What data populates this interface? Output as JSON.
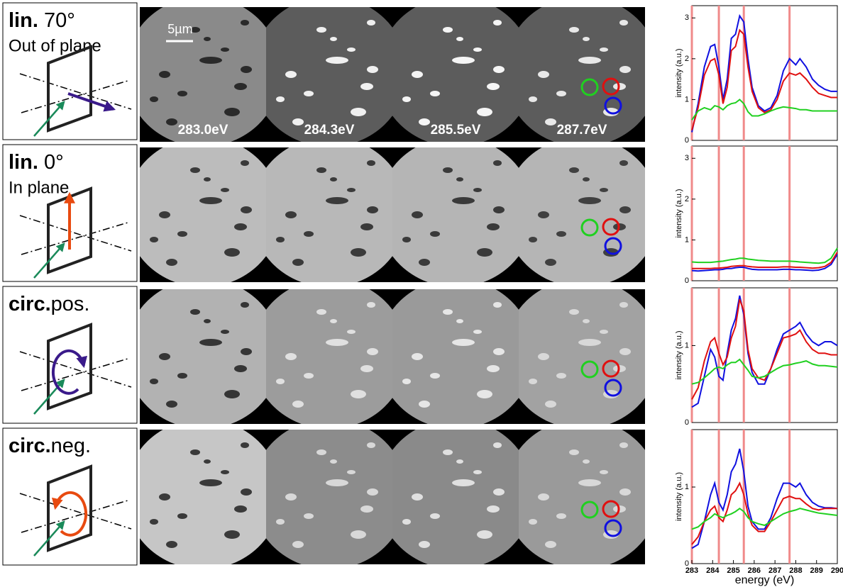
{
  "rows": [
    {
      "label_bold": "lin.",
      "label_rest": " 70°",
      "subtitle": "Out of plane"
    },
    {
      "label_bold": "lin.",
      "label_rest": " 0°",
      "subtitle": "In plane"
    },
    {
      "label_bold": "circ.",
      "label_rest": "pos."
    },
    {
      "label_bold": "circ.",
      "label_rest": "neg."
    }
  ],
  "energy_labels": [
    "283.0eV",
    "284.3eV",
    "285.5eV",
    "287.7eV"
  ],
  "scale_bar": "5µm",
  "chart_data": [
    {
      "type": "line",
      "ylabel": "intensity (a.u.)",
      "xlim": [
        283,
        290
      ],
      "ylim": [
        0,
        3.3
      ],
      "yticks": [
        0,
        1,
        2,
        3
      ],
      "vlines": [
        283.0,
        284.3,
        285.5,
        287.7
      ],
      "vline_color": "#f08a8a",
      "x": [
        283,
        283.3,
        283.6,
        283.9,
        284.1,
        284.3,
        284.5,
        284.7,
        284.9,
        285.1,
        285.3,
        285.5,
        285.7,
        285.9,
        286.2,
        286.5,
        286.8,
        287.1,
        287.4,
        287.7,
        288.0,
        288.2,
        288.5,
        288.8,
        289.1,
        289.4,
        289.7,
        290
      ],
      "series": [
        {
          "color": "#1010e0",
          "values": [
            0.2,
            0.9,
            1.8,
            2.3,
            2.35,
            1.8,
            1.0,
            1.5,
            2.5,
            2.6,
            3.05,
            2.9,
            2.0,
            1.3,
            0.85,
            0.72,
            0.8,
            1.1,
            1.7,
            2.0,
            1.85,
            2.0,
            1.8,
            1.5,
            1.35,
            1.25,
            1.2,
            1.2
          ]
        },
        {
          "color": "#e01010",
          "values": [
            0.25,
            0.8,
            1.6,
            1.95,
            2.0,
            1.6,
            0.9,
            1.3,
            2.2,
            2.3,
            2.7,
            2.6,
            1.8,
            1.2,
            0.8,
            0.68,
            0.75,
            1.0,
            1.45,
            1.65,
            1.6,
            1.65,
            1.5,
            1.3,
            1.15,
            1.1,
            1.05,
            1.05
          ]
        },
        {
          "color": "#20d020",
          "values": [
            0.5,
            0.72,
            0.8,
            0.75,
            0.85,
            0.82,
            0.75,
            0.85,
            0.9,
            0.92,
            1.0,
            0.9,
            0.7,
            0.6,
            0.6,
            0.65,
            0.72,
            0.78,
            0.82,
            0.8,
            0.78,
            0.75,
            0.75,
            0.72,
            0.72,
            0.72,
            0.72,
            0.72
          ]
        }
      ]
    },
    {
      "type": "line",
      "ylabel": "intensity (a.u.)",
      "xlim": [
        283,
        290
      ],
      "ylim": [
        0,
        3.3
      ],
      "yticks": [
        0,
        1,
        2,
        3
      ],
      "vlines": [
        283.0,
        284.3,
        285.5,
        287.7
      ],
      "vline_color": "#f08a8a",
      "x": [
        283,
        283.3,
        283.6,
        283.9,
        284.1,
        284.3,
        284.5,
        284.7,
        284.9,
        285.1,
        285.3,
        285.5,
        285.7,
        285.9,
        286.2,
        286.5,
        286.8,
        287.1,
        287.4,
        287.7,
        288.0,
        288.2,
        288.5,
        288.8,
        289.1,
        289.4,
        289.7,
        290
      ],
      "series": [
        {
          "color": "#1010e0",
          "values": [
            0.25,
            0.24,
            0.25,
            0.26,
            0.27,
            0.27,
            0.28,
            0.3,
            0.3,
            0.32,
            0.33,
            0.33,
            0.3,
            0.28,
            0.27,
            0.27,
            0.27,
            0.27,
            0.28,
            0.28,
            0.27,
            0.27,
            0.26,
            0.25,
            0.26,
            0.3,
            0.4,
            0.65
          ]
        },
        {
          "color": "#e01010",
          "values": [
            0.3,
            0.3,
            0.3,
            0.3,
            0.31,
            0.31,
            0.32,
            0.33,
            0.35,
            0.36,
            0.37,
            0.37,
            0.35,
            0.34,
            0.33,
            0.33,
            0.33,
            0.33,
            0.34,
            0.34,
            0.33,
            0.33,
            0.32,
            0.31,
            0.32,
            0.35,
            0.45,
            0.7
          ]
        },
        {
          "color": "#20d020",
          "values": [
            0.46,
            0.45,
            0.45,
            0.45,
            0.46,
            0.47,
            0.48,
            0.5,
            0.52,
            0.53,
            0.55,
            0.55,
            0.53,
            0.52,
            0.5,
            0.49,
            0.48,
            0.48,
            0.48,
            0.48,
            0.47,
            0.46,
            0.45,
            0.44,
            0.43,
            0.45,
            0.55,
            0.8
          ]
        }
      ]
    },
    {
      "type": "line",
      "ylabel": "intensity (a.u.)",
      "xlim": [
        283,
        290
      ],
      "ylim": [
        0,
        1.75
      ],
      "yticks": [
        0,
        1
      ],
      "vlines": [
        283.0,
        284.3,
        285.5,
        287.7
      ],
      "vline_color": "#f08a8a",
      "x": [
        283,
        283.3,
        283.6,
        283.9,
        284.1,
        284.3,
        284.5,
        284.7,
        284.9,
        285.1,
        285.3,
        285.5,
        285.7,
        285.9,
        286.2,
        286.5,
        286.8,
        287.1,
        287.4,
        287.7,
        288.0,
        288.2,
        288.5,
        288.8,
        289.1,
        289.4,
        289.7,
        290
      ],
      "series": [
        {
          "color": "#1010e0",
          "values": [
            0.2,
            0.25,
            0.6,
            0.95,
            0.85,
            0.6,
            0.55,
            0.9,
            1.2,
            1.35,
            1.65,
            1.4,
            0.9,
            0.65,
            0.5,
            0.5,
            0.7,
            0.95,
            1.15,
            1.2,
            1.25,
            1.3,
            1.15,
            1.05,
            1.0,
            1.05,
            1.05,
            1.0
          ]
        },
        {
          "color": "#e01010",
          "values": [
            0.3,
            0.45,
            0.8,
            1.05,
            1.1,
            0.9,
            0.75,
            0.85,
            1.1,
            1.25,
            1.6,
            1.45,
            0.95,
            0.7,
            0.58,
            0.55,
            0.7,
            0.9,
            1.1,
            1.12,
            1.15,
            1.2,
            1.05,
            0.95,
            0.9,
            0.9,
            0.88,
            0.88
          ]
        },
        {
          "color": "#20d020",
          "values": [
            0.5,
            0.52,
            0.58,
            0.65,
            0.7,
            0.72,
            0.7,
            0.75,
            0.78,
            0.78,
            0.82,
            0.75,
            0.68,
            0.6,
            0.58,
            0.6,
            0.65,
            0.7,
            0.74,
            0.75,
            0.77,
            0.78,
            0.8,
            0.76,
            0.74,
            0.74,
            0.73,
            0.72
          ]
        }
      ]
    },
    {
      "type": "line",
      "ylabel": "intensity (a.u.)",
      "xlabel": "energy (eV)",
      "xlim": [
        283,
        290
      ],
      "ylim": [
        0,
        1.75
      ],
      "yticks": [
        0,
        1
      ],
      "xticks": [
        283,
        284,
        285,
        286,
        287,
        288,
        289,
        290
      ],
      "vlines": [
        283.0,
        284.3,
        285.5,
        287.7
      ],
      "vline_color": "#f08a8a",
      "x": [
        283,
        283.3,
        283.6,
        283.9,
        284.1,
        284.3,
        284.5,
        284.7,
        284.9,
        285.1,
        285.3,
        285.5,
        285.7,
        285.9,
        286.2,
        286.5,
        286.8,
        287.1,
        287.4,
        287.7,
        288.0,
        288.2,
        288.5,
        288.8,
        289.1,
        289.4,
        289.7,
        290
      ],
      "series": [
        {
          "color": "#1010e0",
          "values": [
            0.2,
            0.25,
            0.55,
            0.9,
            1.05,
            0.8,
            0.7,
            0.9,
            1.2,
            1.3,
            1.5,
            1.2,
            0.75,
            0.55,
            0.45,
            0.45,
            0.6,
            0.85,
            1.05,
            1.05,
            1.0,
            1.05,
            0.9,
            0.8,
            0.75,
            0.73,
            0.73,
            0.72
          ]
        },
        {
          "color": "#e01010",
          "values": [
            0.25,
            0.35,
            0.55,
            0.7,
            0.75,
            0.6,
            0.55,
            0.7,
            0.9,
            0.95,
            1.05,
            0.9,
            0.65,
            0.5,
            0.42,
            0.42,
            0.55,
            0.7,
            0.85,
            0.88,
            0.85,
            0.85,
            0.78,
            0.72,
            0.7,
            0.72,
            0.72,
            0.72
          ]
        },
        {
          "color": "#20d020",
          "values": [
            0.45,
            0.48,
            0.55,
            0.6,
            0.65,
            0.62,
            0.6,
            0.63,
            0.65,
            0.68,
            0.72,
            0.68,
            0.6,
            0.55,
            0.52,
            0.5,
            0.55,
            0.6,
            0.65,
            0.68,
            0.7,
            0.72,
            0.7,
            0.68,
            0.66,
            0.65,
            0.64,
            0.63
          ]
        }
      ]
    }
  ]
}
